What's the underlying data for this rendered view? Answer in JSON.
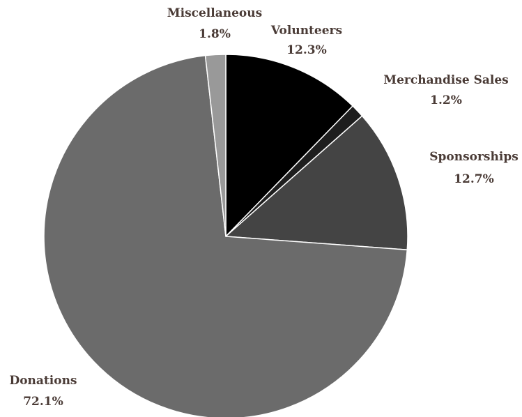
{
  "chart_data": {
    "type": "pie",
    "title": "",
    "series": [
      {
        "slices": [
          {
            "label": "Volunteers",
            "value": 12.3,
            "display": "12.3%",
            "color": "#000000"
          },
          {
            "label": "Merchandise Sales",
            "value": 1.2,
            "display": "1.2%",
            "color": "#1e1e1e"
          },
          {
            "label": "Sponsorships",
            "value": 12.7,
            "display": "12.7%",
            "color": "#444444"
          },
          {
            "label": "Donations",
            "value": 72.1,
            "display": "72.1%",
            "color": "#6b6b6b"
          },
          {
            "label": "Miscellaneous",
            "value": 1.8,
            "display": "1.8%",
            "color": "#999999"
          }
        ]
      }
    ],
    "start_angle_deg": 0,
    "direction": "clockwise",
    "slice_border_color": "#ffffff",
    "label_color": "#4a3b36",
    "legend": "none"
  }
}
